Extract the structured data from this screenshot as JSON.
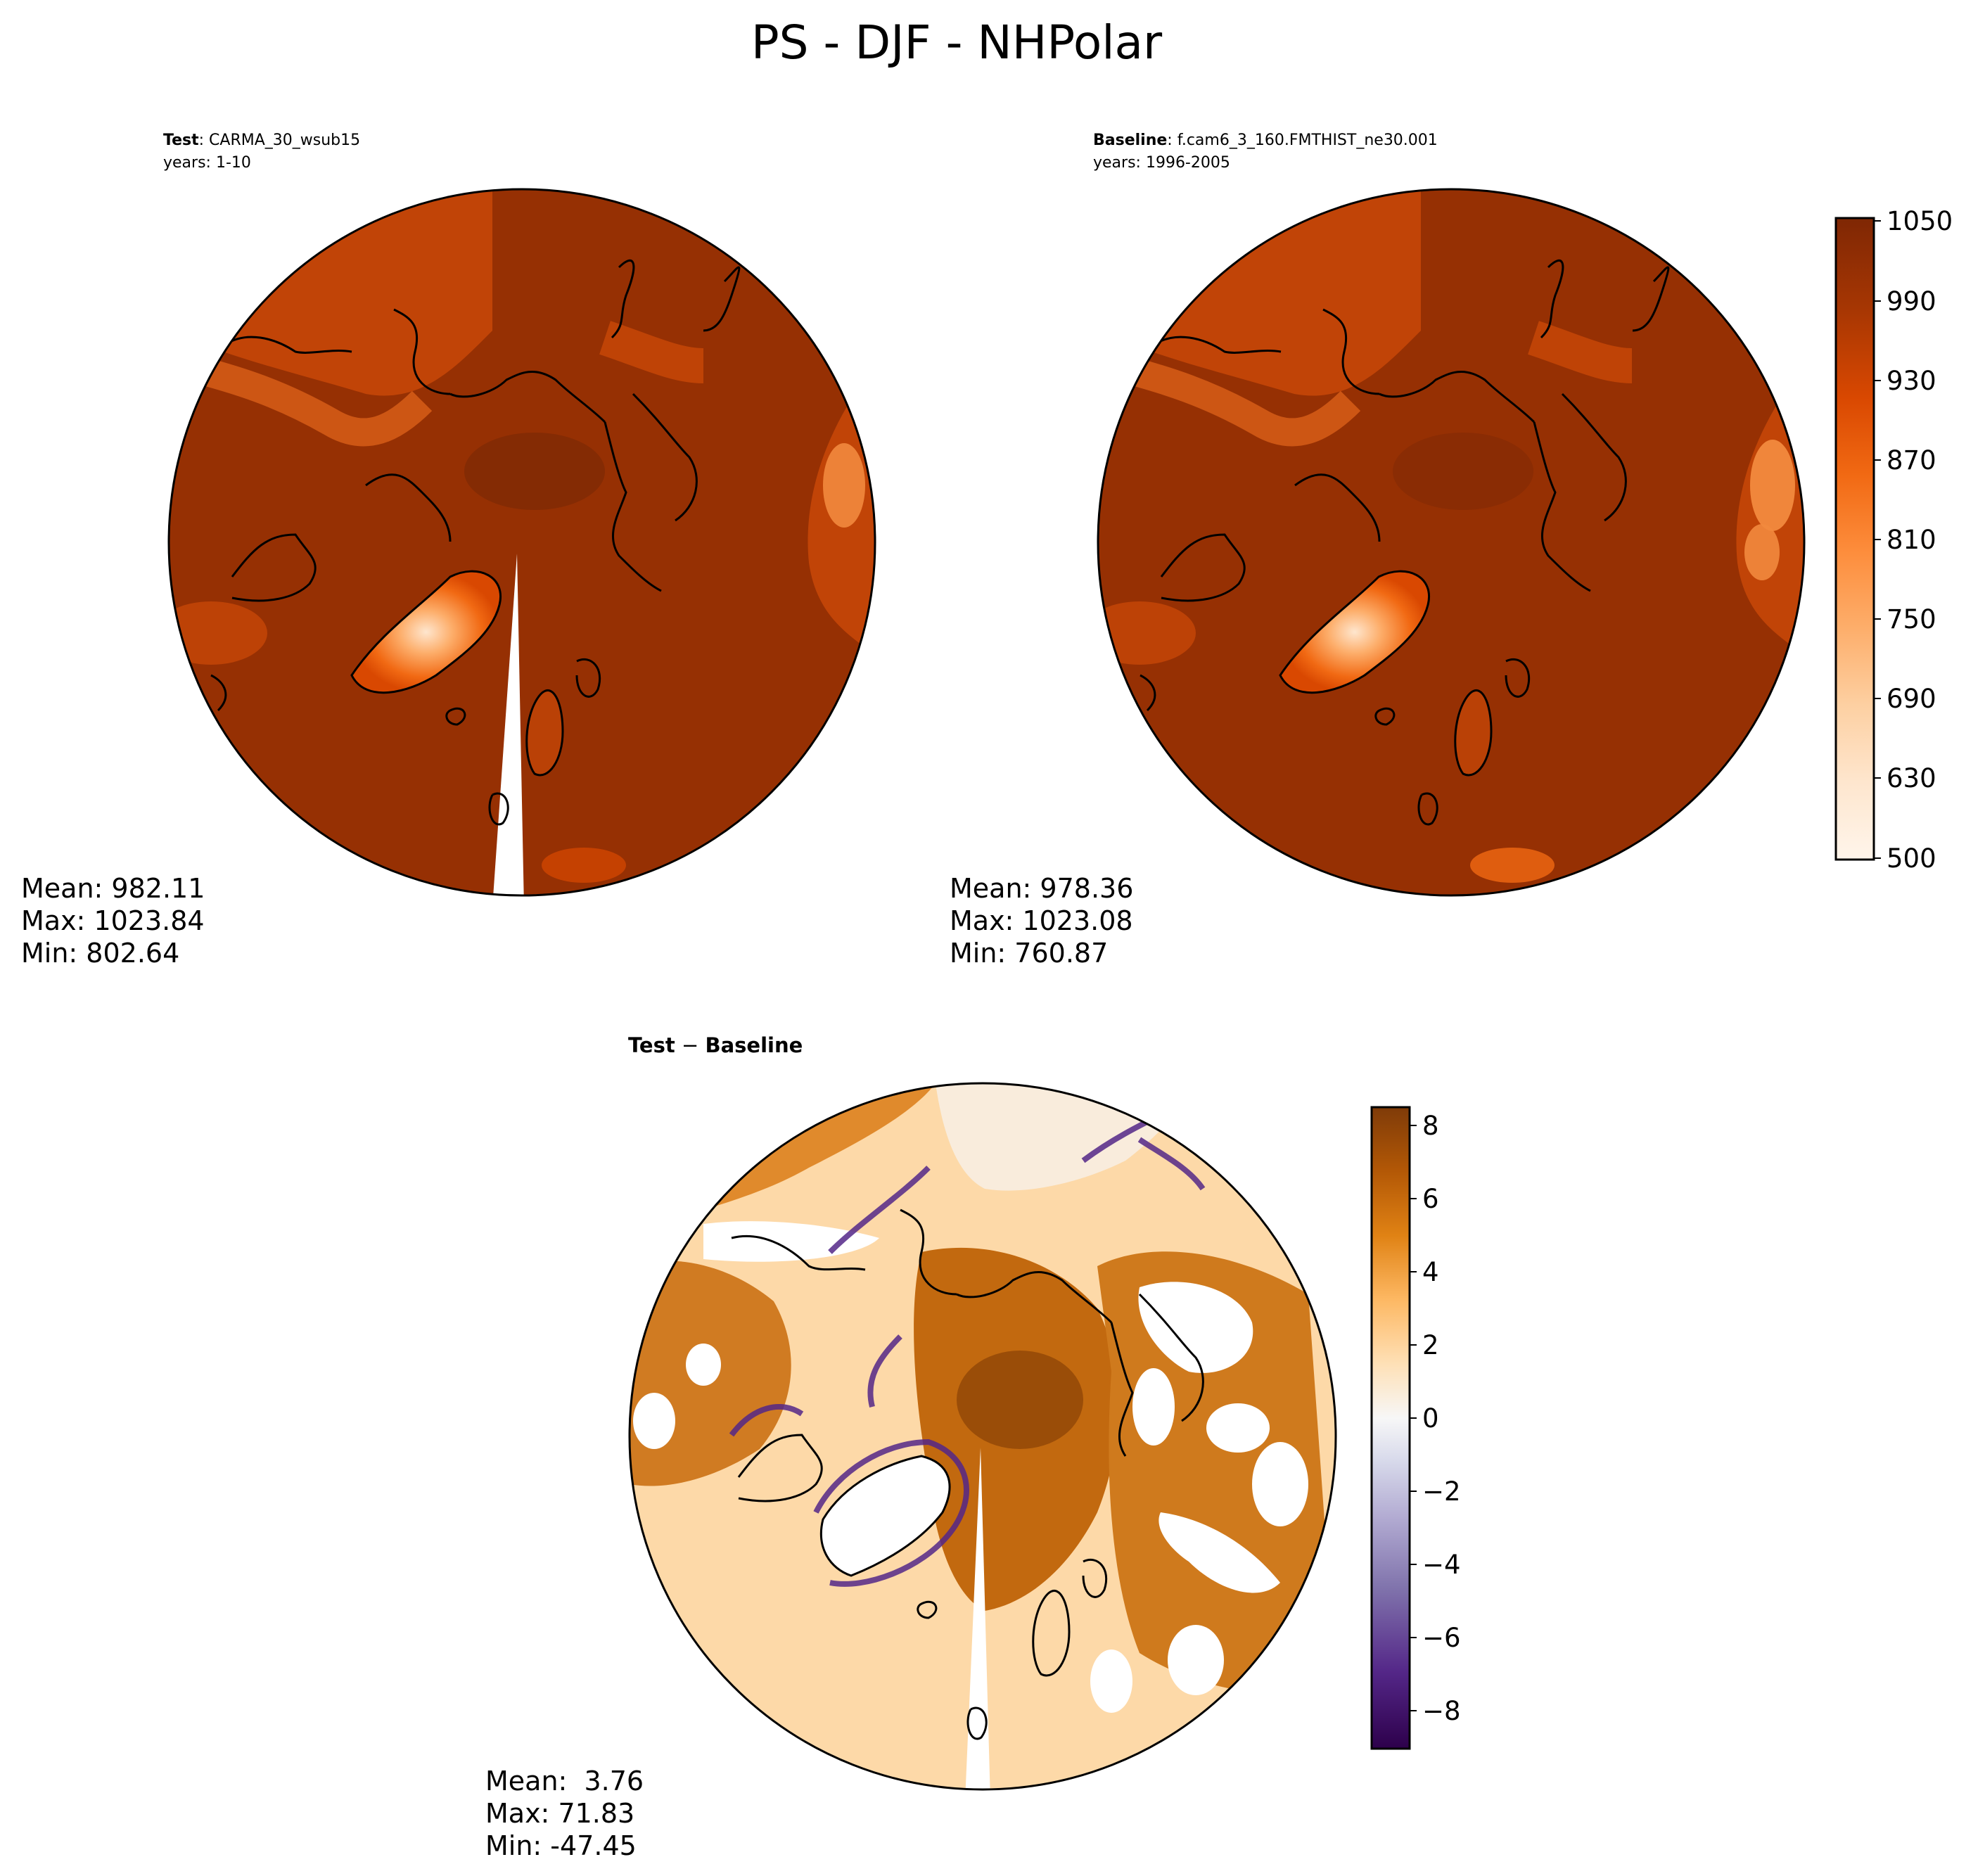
{
  "title": "PS - DJF - NHPolar",
  "panels": [
    {
      "id": "test",
      "label_bold": "Test",
      "label_sep": ": ",
      "label_name": "CARMA_30_wsub15",
      "years": "years: 1-10",
      "stats": {
        "mean": "Mean: 982.11",
        "max": "Max: 1023.84",
        "min": "Min: 802.64"
      }
    },
    {
      "id": "baseline",
      "label_bold": "Baseline",
      "label_sep": ": ",
      "label_name": "f.cam6_3_160.FMTHIST_ne30.001",
      "years": "years: 1996-2005",
      "stats": {
        "mean": "Mean: 978.36",
        "max": "Max: 1023.08",
        "min": "Min: 760.87"
      }
    },
    {
      "id": "diff",
      "label_bold": "Test",
      "label_sep": " − ",
      "label_name": "Baseline",
      "stats": {
        "mean": "Mean:  3.76",
        "max": "Max: 71.83",
        "min": "Min: -47.45"
      }
    }
  ],
  "colorbars": {
    "absolute": {
      "colormap": "Oranges",
      "levels": [
        500,
        1050
      ],
      "ticks": [
        "1050",
        "990",
        "930",
        "870",
        "810",
        "750",
        "690",
        "630",
        "500"
      ],
      "colors": [
        "#fff5eb",
        "#fee6ce",
        "#fdd0a2",
        "#fdae6b",
        "#fd8d3c",
        "#f16913",
        "#d94801",
        "#a63603",
        "#7f2704"
      ]
    },
    "difference": {
      "colormap": "PuOr",
      "range": [
        -9,
        8.5
      ],
      "ticks": [
        "8",
        "6",
        "4",
        "2",
        "0",
        "−2",
        "−4",
        "−6",
        "−8"
      ],
      "colors": [
        "#2d004b",
        "#542788",
        "#8073ac",
        "#b2abd2",
        "#d8daeb",
        "#f7f7f7",
        "#fee0b6",
        "#fdb863",
        "#e08214",
        "#b35806",
        "#7f3b08"
      ]
    }
  },
  "map_colors": {
    "ocean_pressure": "#963003",
    "high_pressure": "#842b04",
    "mid_pressure": "#c94808",
    "low_pressure": "#f28a3e",
    "greenland": "#fdb07a",
    "coastline": "#000000",
    "diff_positive": "#c2690f",
    "diff_positive_light": "#fdd9a8",
    "diff_negative": "#542788"
  }
}
